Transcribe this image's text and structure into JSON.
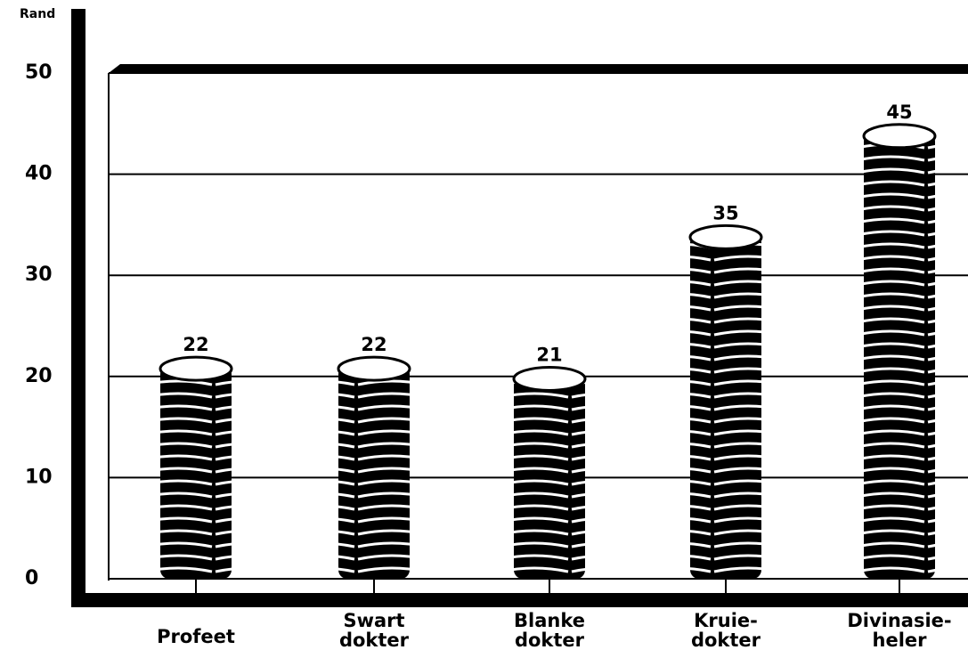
{
  "chart_data": {
    "type": "bar",
    "y_label": "Rand",
    "categories": [
      "Profeet",
      "Swart\ndokter",
      "Blanke\ndokter",
      "Kruie-\ndokter",
      "Divinasie-\nheler"
    ],
    "values": [
      22,
      22,
      21,
      35,
      45
    ],
    "color": "#000000",
    "ylim": [
      0,
      50
    ],
    "yticks": [
      0,
      10,
      20,
      30,
      40,
      50
    ],
    "grid": true
  }
}
